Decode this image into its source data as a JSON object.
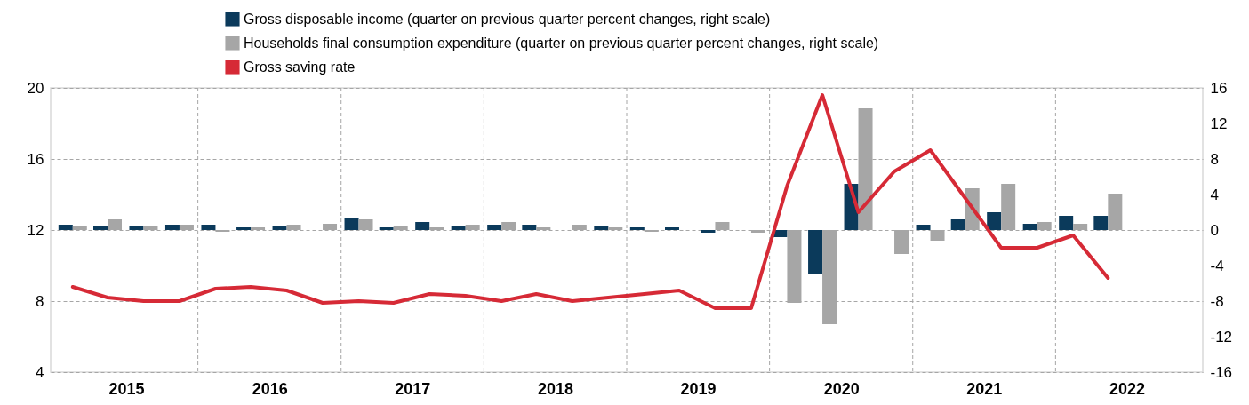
{
  "chart_data": {
    "type": "bar",
    "legend": "top",
    "grid": true,
    "line_style": "solid",
    "marker": "none",
    "x": [
      "2015-02-15",
      "2015-05-15",
      "2015-08-15",
      "2015-11-15",
      "2016-02-15",
      "2016-05-15",
      "2016-08-15",
      "2016-11-15",
      "2017-02-15",
      "2017-05-15",
      "2017-08-15",
      "2017-11-15",
      "2018-02-15",
      "2018-05-15",
      "2018-08-15",
      "2018-11-15",
      "2019-02-15",
      "2019-05-15",
      "2019-08-15",
      "2019-11-15",
      "2020-02-15",
      "2020-05-15",
      "2020-08-15",
      "2020-11-15",
      "2021-02-15",
      "2021-05-15",
      "2021-08-15",
      "2021-11-15",
      "2022-02-15",
      "2022-05-15"
    ],
    "xlim": [
      "2015-01-01",
      "2023-01-01"
    ],
    "xticks": [
      {
        "value": "2015-07-02",
        "label": "2015"
      },
      {
        "value": "2016-01-01",
        "label": null
      },
      {
        "value": "2016-07-02",
        "label": "2016"
      },
      {
        "value": "2017-01-01",
        "label": null
      },
      {
        "value": "2017-07-02",
        "label": "2017"
      },
      {
        "value": "2018-01-01",
        "label": null
      },
      {
        "value": "2018-07-02",
        "label": "2018"
      },
      {
        "value": "2019-01-01",
        "label": null
      },
      {
        "value": "2019-07-02",
        "label": "2019"
      },
      {
        "value": "2020-01-01",
        "label": null
      },
      {
        "value": "2020-07-02",
        "label": "2020"
      },
      {
        "value": "2021-01-01",
        "label": null
      },
      {
        "value": "2021-07-02",
        "label": "2021"
      },
      {
        "value": "2022-01-01",
        "label": null
      },
      {
        "value": "2022-07-02",
        "label": "2022"
      }
    ],
    "ylim": [
      4,
      20
    ],
    "yticks": [
      4,
      8,
      12,
      16,
      20
    ],
    "y2lim": [
      -16,
      16
    ],
    "y2ticks": [
      -16,
      -12,
      -8,
      -4,
      0,
      4,
      8,
      12,
      16
    ],
    "series": [
      {
        "name": "Gross disposable income (quarter on previous quarter percent changes, right scale)",
        "axis": "y2",
        "color": "#0b3a5b",
        "values": [
          0.6,
          0.4,
          0.4,
          0.6,
          0.6,
          0.3,
          0.4,
          0,
          1.4,
          0.3,
          0.9,
          0.4,
          0.6,
          0.6,
          0,
          0.4,
          0.3,
          0.3,
          -0.3,
          0,
          -0.8,
          -5.0,
          5.2,
          0,
          0.6,
          1.2,
          2.0,
          0.7,
          1.6,
          1.6
        ]
      },
      {
        "name": "Households final consumption expenditure (quarter on previous quarter percent changes, right scale)",
        "axis": "y2",
        "color": "#a6a6a6",
        "values": [
          0.4,
          1.2,
          0.4,
          0.6,
          -0.2,
          0.3,
          0.6,
          0.7,
          1.2,
          0.4,
          0.3,
          0.6,
          0.9,
          0.3,
          0.6,
          0.3,
          -0.2,
          0,
          0.9,
          -0.3,
          -8.2,
          -10.6,
          13.7,
          -2.7,
          -1.2,
          4.7,
          5.2,
          0.9,
          0.7,
          4.1
        ]
      },
      {
        "name": "Gross saving rate",
        "type": "line",
        "axis": "y",
        "color": "#d62a36",
        "values": [
          8.8,
          8.2,
          8.0,
          8.0,
          8.7,
          8.8,
          8.6,
          7.9,
          8.0,
          7.9,
          8.4,
          8.3,
          8.0,
          8.4,
          8.0,
          8.2,
          8.4,
          8.6,
          7.6,
          7.6,
          14.5,
          19.6,
          13.0,
          15.3,
          16.5,
          13.8,
          11.0,
          11.0,
          11.7,
          9.3
        ]
      }
    ]
  }
}
